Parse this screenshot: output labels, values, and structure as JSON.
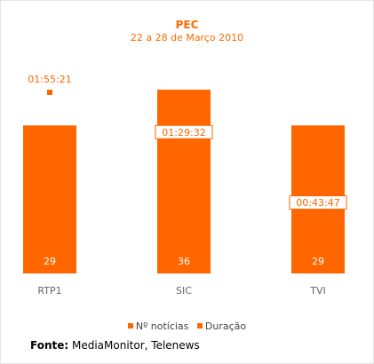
{
  "colors": {
    "accent": "#ff6600",
    "label_text": "#ff6600",
    "axis_text": "#666666"
  },
  "chart_data": {
    "type": "bar",
    "title": "PEC",
    "subtitle": "22 a 28 de Março 2010",
    "categories": [
      "RTP1",
      "SIC",
      "TVI"
    ],
    "series": [
      {
        "name": "Nº notícias",
        "values": [
          29,
          36,
          29
        ],
        "labels": [
          "29",
          "36",
          "29"
        ]
      },
      {
        "name": "Duração",
        "values": [
          "01:55:21",
          "01:29:32",
          "00:43:47"
        ],
        "seconds": [
          6921,
          5372,
          2627
        ]
      }
    ],
    "bar_max": 36,
    "grid": false,
    "legend_position": "bottom"
  },
  "source": {
    "label": "Fonte:",
    "text": " MediaMonitor, Telenews"
  }
}
